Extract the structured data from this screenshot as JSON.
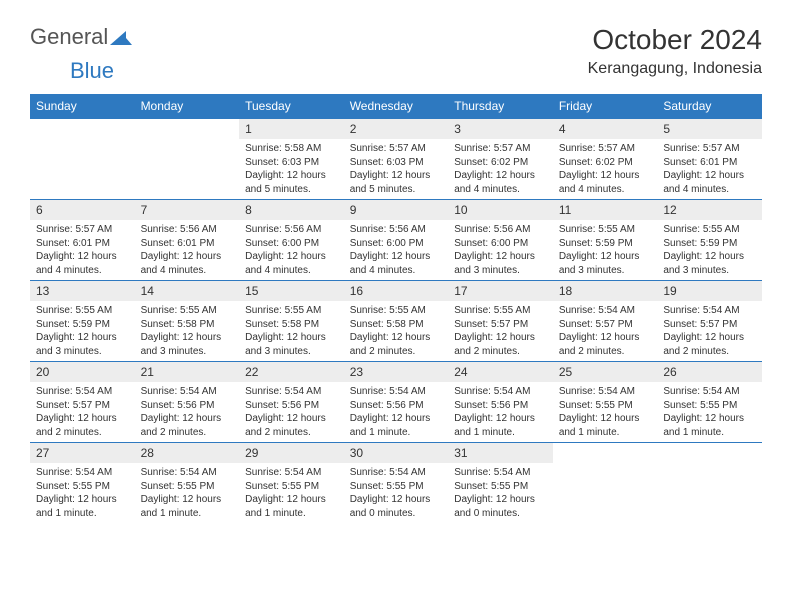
{
  "logo": {
    "part1": "General",
    "part2": "Blue"
  },
  "title": "October 2024",
  "location": "Kerangagung, Indonesia",
  "day_headers": [
    "Sunday",
    "Monday",
    "Tuesday",
    "Wednesday",
    "Thursday",
    "Friday",
    "Saturday"
  ],
  "colors": {
    "header_bg": "#2e79c0",
    "header_text": "#ffffff",
    "daynum_bg": "#ededed",
    "border": "#2e79c0",
    "text": "#333333",
    "logo_gray": "#555555"
  },
  "weeks": [
    [
      null,
      null,
      {
        "n": "1",
        "sunrise": "Sunrise: 5:58 AM",
        "sunset": "Sunset: 6:03 PM",
        "daylight": "Daylight: 12 hours and 5 minutes."
      },
      {
        "n": "2",
        "sunrise": "Sunrise: 5:57 AM",
        "sunset": "Sunset: 6:03 PM",
        "daylight": "Daylight: 12 hours and 5 minutes."
      },
      {
        "n": "3",
        "sunrise": "Sunrise: 5:57 AM",
        "sunset": "Sunset: 6:02 PM",
        "daylight": "Daylight: 12 hours and 4 minutes."
      },
      {
        "n": "4",
        "sunrise": "Sunrise: 5:57 AM",
        "sunset": "Sunset: 6:02 PM",
        "daylight": "Daylight: 12 hours and 4 minutes."
      },
      {
        "n": "5",
        "sunrise": "Sunrise: 5:57 AM",
        "sunset": "Sunset: 6:01 PM",
        "daylight": "Daylight: 12 hours and 4 minutes."
      }
    ],
    [
      {
        "n": "6",
        "sunrise": "Sunrise: 5:57 AM",
        "sunset": "Sunset: 6:01 PM",
        "daylight": "Daylight: 12 hours and 4 minutes."
      },
      {
        "n": "7",
        "sunrise": "Sunrise: 5:56 AM",
        "sunset": "Sunset: 6:01 PM",
        "daylight": "Daylight: 12 hours and 4 minutes."
      },
      {
        "n": "8",
        "sunrise": "Sunrise: 5:56 AM",
        "sunset": "Sunset: 6:00 PM",
        "daylight": "Daylight: 12 hours and 4 minutes."
      },
      {
        "n": "9",
        "sunrise": "Sunrise: 5:56 AM",
        "sunset": "Sunset: 6:00 PM",
        "daylight": "Daylight: 12 hours and 4 minutes."
      },
      {
        "n": "10",
        "sunrise": "Sunrise: 5:56 AM",
        "sunset": "Sunset: 6:00 PM",
        "daylight": "Daylight: 12 hours and 3 minutes."
      },
      {
        "n": "11",
        "sunrise": "Sunrise: 5:55 AM",
        "sunset": "Sunset: 5:59 PM",
        "daylight": "Daylight: 12 hours and 3 minutes."
      },
      {
        "n": "12",
        "sunrise": "Sunrise: 5:55 AM",
        "sunset": "Sunset: 5:59 PM",
        "daylight": "Daylight: 12 hours and 3 minutes."
      }
    ],
    [
      {
        "n": "13",
        "sunrise": "Sunrise: 5:55 AM",
        "sunset": "Sunset: 5:59 PM",
        "daylight": "Daylight: 12 hours and 3 minutes."
      },
      {
        "n": "14",
        "sunrise": "Sunrise: 5:55 AM",
        "sunset": "Sunset: 5:58 PM",
        "daylight": "Daylight: 12 hours and 3 minutes."
      },
      {
        "n": "15",
        "sunrise": "Sunrise: 5:55 AM",
        "sunset": "Sunset: 5:58 PM",
        "daylight": "Daylight: 12 hours and 3 minutes."
      },
      {
        "n": "16",
        "sunrise": "Sunrise: 5:55 AM",
        "sunset": "Sunset: 5:58 PM",
        "daylight": "Daylight: 12 hours and 2 minutes."
      },
      {
        "n": "17",
        "sunrise": "Sunrise: 5:55 AM",
        "sunset": "Sunset: 5:57 PM",
        "daylight": "Daylight: 12 hours and 2 minutes."
      },
      {
        "n": "18",
        "sunrise": "Sunrise: 5:54 AM",
        "sunset": "Sunset: 5:57 PM",
        "daylight": "Daylight: 12 hours and 2 minutes."
      },
      {
        "n": "19",
        "sunrise": "Sunrise: 5:54 AM",
        "sunset": "Sunset: 5:57 PM",
        "daylight": "Daylight: 12 hours and 2 minutes."
      }
    ],
    [
      {
        "n": "20",
        "sunrise": "Sunrise: 5:54 AM",
        "sunset": "Sunset: 5:57 PM",
        "daylight": "Daylight: 12 hours and 2 minutes."
      },
      {
        "n": "21",
        "sunrise": "Sunrise: 5:54 AM",
        "sunset": "Sunset: 5:56 PM",
        "daylight": "Daylight: 12 hours and 2 minutes."
      },
      {
        "n": "22",
        "sunrise": "Sunrise: 5:54 AM",
        "sunset": "Sunset: 5:56 PM",
        "daylight": "Daylight: 12 hours and 2 minutes."
      },
      {
        "n": "23",
        "sunrise": "Sunrise: 5:54 AM",
        "sunset": "Sunset: 5:56 PM",
        "daylight": "Daylight: 12 hours and 1 minute."
      },
      {
        "n": "24",
        "sunrise": "Sunrise: 5:54 AM",
        "sunset": "Sunset: 5:56 PM",
        "daylight": "Daylight: 12 hours and 1 minute."
      },
      {
        "n": "25",
        "sunrise": "Sunrise: 5:54 AM",
        "sunset": "Sunset: 5:55 PM",
        "daylight": "Daylight: 12 hours and 1 minute."
      },
      {
        "n": "26",
        "sunrise": "Sunrise: 5:54 AM",
        "sunset": "Sunset: 5:55 PM",
        "daylight": "Daylight: 12 hours and 1 minute."
      }
    ],
    [
      {
        "n": "27",
        "sunrise": "Sunrise: 5:54 AM",
        "sunset": "Sunset: 5:55 PM",
        "daylight": "Daylight: 12 hours and 1 minute."
      },
      {
        "n": "28",
        "sunrise": "Sunrise: 5:54 AM",
        "sunset": "Sunset: 5:55 PM",
        "daylight": "Daylight: 12 hours and 1 minute."
      },
      {
        "n": "29",
        "sunrise": "Sunrise: 5:54 AM",
        "sunset": "Sunset: 5:55 PM",
        "daylight": "Daylight: 12 hours and 1 minute."
      },
      {
        "n": "30",
        "sunrise": "Sunrise: 5:54 AM",
        "sunset": "Sunset: 5:55 PM",
        "daylight": "Daylight: 12 hours and 0 minutes."
      },
      {
        "n": "31",
        "sunrise": "Sunrise: 5:54 AM",
        "sunset": "Sunset: 5:55 PM",
        "daylight": "Daylight: 12 hours and 0 minutes."
      },
      null,
      null
    ]
  ]
}
